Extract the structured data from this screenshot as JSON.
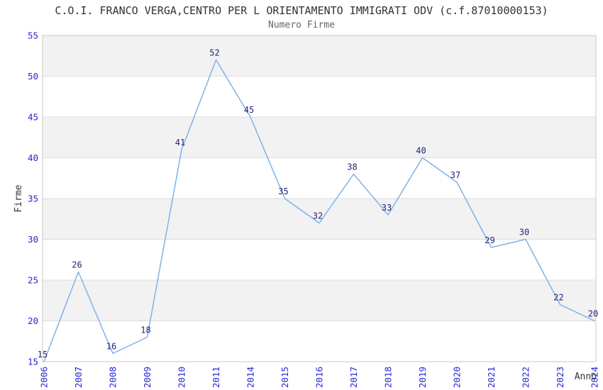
{
  "page": {
    "title": "C.O.I. FRANCO VERGA,CENTRO PER L ORIENTAMENTO IMMIGRATI ODV (c.f.87010000153)",
    "subtitle": "Numero Firme"
  },
  "chart_data": {
    "type": "line",
    "title": "C.O.I. FRANCO VERGA,CENTRO PER L ORIENTAMENTO IMMIGRATI ODV (c.f.87010000153)",
    "subtitle": "Numero Firme",
    "xlabel": "Anno",
    "ylabel": "Firme",
    "categories": [
      "2006",
      "2007",
      "2008",
      "2009",
      "2010",
      "2011",
      "2014",
      "2015",
      "2016",
      "2017",
      "2018",
      "2019",
      "2020",
      "2021",
      "2022",
      "2023",
      "2024"
    ],
    "series": [
      {
        "name": "Numero Firme",
        "values": [
          15,
          26,
          16,
          18,
          41,
          52,
          45,
          35,
          32,
          38,
          33,
          40,
          37,
          29,
          30,
          22,
          20
        ]
      }
    ],
    "ylim": [
      15,
      55
    ],
    "ytick_step": 5,
    "yticks": [
      15,
      20,
      25,
      30,
      35,
      40,
      45,
      50,
      55
    ],
    "grid": "alternating-horizontal-bands",
    "legend_position": "none",
    "point_labels_visible": true,
    "colors": {
      "line": "#7fb2e8",
      "point_label": "#24247a",
      "tick_label": "#2626cf",
      "title": "#333333",
      "subtitle": "#666666",
      "axis_label": "#333333",
      "band": "#f2f2f2",
      "gridline": "#dddddd",
      "border": "#c8c8c8",
      "background": "#ffffff"
    }
  }
}
